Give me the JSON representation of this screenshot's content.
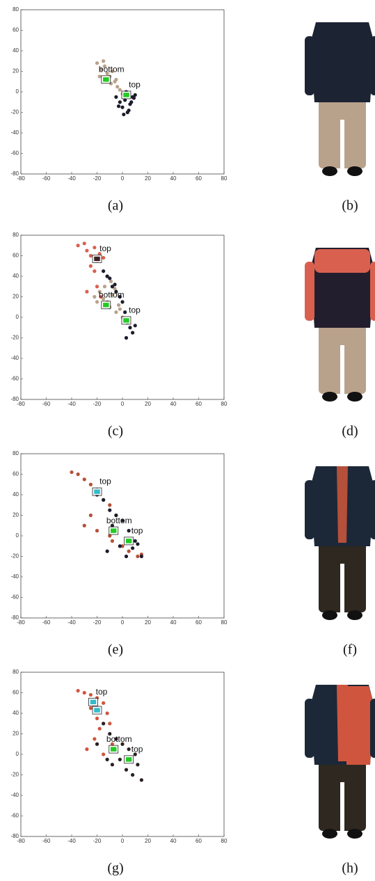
{
  "chart_data": [
    {
      "type": "scatter",
      "caption": "(a)",
      "xlim": [
        -80,
        80
      ],
      "ylim": [
        -80,
        80
      ],
      "xticks": [
        -80,
        -60,
        -40,
        -20,
        0,
        20,
        40,
        60,
        80
      ],
      "yticks": [
        -80,
        -60,
        -40,
        -20,
        0,
        20,
        40,
        60,
        80
      ],
      "series": [
        {
          "color": "#b9a28b",
          "x": [
            -20,
            -17,
            -14,
            -12,
            -10,
            -8,
            -6,
            -4,
            -18,
            -15,
            -9,
            -5,
            -2,
            0
          ],
          "y": [
            28,
            22,
            25,
            18,
            15,
            20,
            10,
            5,
            15,
            30,
            8,
            12,
            2,
            -2
          ]
        },
        {
          "color": "#1c1c2c",
          "x": [
            -5,
            -2,
            0,
            2,
            4,
            6,
            8,
            10,
            1,
            3,
            5,
            -3,
            7,
            9
          ],
          "y": [
            -5,
            -10,
            -15,
            -8,
            -20,
            -12,
            -5,
            -3,
            -22,
            0,
            -18,
            -14,
            -10,
            -6
          ]
        }
      ],
      "markers": [
        {
          "x": -13,
          "y": 12,
          "label": "bottom",
          "color": "#22cc22"
        },
        {
          "x": 3,
          "y": -3,
          "label": "top",
          "color": "#22cc22"
        }
      ]
    },
    {
      "type": "scatter",
      "caption": "(c)",
      "xlim": [
        -80,
        80
      ],
      "ylim": [
        -80,
        80
      ],
      "xticks": [
        -80,
        -60,
        -40,
        -20,
        0,
        20,
        40,
        60,
        80
      ],
      "yticks": [
        -80,
        -60,
        -40,
        -20,
        0,
        20,
        40,
        60,
        80
      ],
      "series": [
        {
          "color": "#d9604f",
          "x": [
            -35,
            -30,
            -28,
            -25,
            -22,
            -20,
            -18,
            -15,
            -25,
            -12,
            -28,
            -20,
            -17,
            -22
          ],
          "y": [
            70,
            72,
            65,
            60,
            68,
            55,
            62,
            58,
            50,
            40,
            25,
            30,
            20,
            45
          ]
        },
        {
          "color": "#b9a28b",
          "x": [
            -22,
            -18,
            -15,
            -12,
            -10,
            -8,
            -5,
            -3,
            -14,
            -6,
            0,
            -20,
            -9,
            -2
          ],
          "y": [
            20,
            25,
            18,
            15,
            10,
            22,
            5,
            12,
            30,
            28,
            0,
            15,
            35,
            8
          ]
        },
        {
          "color": "#1c1c2c",
          "x": [
            -15,
            -10,
            -8,
            -5,
            -2,
            0,
            2,
            4,
            6,
            8,
            10,
            -12,
            -6,
            3
          ],
          "y": [
            45,
            38,
            30,
            25,
            20,
            15,
            5,
            -5,
            -10,
            -15,
            -8,
            40,
            32,
            -20
          ]
        }
      ],
      "markers": [
        {
          "x": -20,
          "y": 57,
          "label": "top",
          "color": "#3a2020"
        },
        {
          "x": -13,
          "y": 12,
          "label": "bottom",
          "color": "#22cc22"
        },
        {
          "x": 3,
          "y": -3,
          "label": "top",
          "color": "#22cc22"
        }
      ]
    },
    {
      "type": "scatter",
      "caption": "(e)",
      "xlim": [
        -80,
        80
      ],
      "ylim": [
        -80,
        80
      ],
      "xticks": [
        -80,
        -60,
        -40,
        -20,
        0,
        20,
        40,
        60,
        80
      ],
      "yticks": [
        -80,
        -60,
        -40,
        -20,
        0,
        20,
        40,
        60,
        80
      ],
      "series": [
        {
          "color": "#b5503a",
          "x": [
            -40,
            -35,
            -30,
            -25,
            -20,
            -15,
            -10,
            -5,
            -30,
            -20,
            -10,
            0,
            5,
            12,
            15,
            -8,
            -25
          ],
          "y": [
            62,
            60,
            55,
            50,
            45,
            35,
            30,
            20,
            10,
            5,
            0,
            -10,
            -15,
            -20,
            -18,
            -5,
            20
          ]
        },
        {
          "color": "#1c1c2c",
          "x": [
            -20,
            -15,
            -10,
            -5,
            0,
            5,
            10,
            -12,
            -2,
            3,
            8,
            12,
            15,
            -8
          ],
          "y": [
            40,
            35,
            25,
            20,
            15,
            5,
            -5,
            -15,
            -10,
            -20,
            -12,
            -8,
            -20,
            10
          ]
        }
      ],
      "markers": [
        {
          "x": -20,
          "y": 43,
          "label": "top",
          "color": "#33bbcc"
        },
        {
          "x": -7,
          "y": 5,
          "label": "bottom",
          "color": "#22cc22"
        },
        {
          "x": 5,
          "y": -5,
          "label": "top",
          "color": "#22cc22"
        }
      ]
    },
    {
      "type": "scatter",
      "caption": "(g)",
      "xlim": [
        -80,
        80
      ],
      "ylim": [
        -80,
        80
      ],
      "xticks": [
        -80,
        -60,
        {
          "value": -40,
          "label": "-40"
        },
        -20,
        0,
        20,
        40,
        60,
        80
      ],
      "yticks": [
        -80,
        -60,
        -40,
        -20,
        0,
        20,
        40,
        60,
        80
      ],
      "series": [
        {
          "color": "#d0553f",
          "x": [
            -35,
            -30,
            -25,
            -20,
            -15,
            -12,
            -10,
            -18,
            -22,
            -28,
            -15,
            -8,
            -20,
            -25
          ],
          "y": [
            62,
            60,
            58,
            55,
            50,
            40,
            30,
            25,
            15,
            5,
            0,
            10,
            35,
            45
          ]
        },
        {
          "color": "#2a2020",
          "x": [
            -15,
            -10,
            -5,
            0,
            5,
            10,
            -8,
            -2,
            3,
            8,
            12,
            -12,
            15,
            -20
          ],
          "y": [
            30,
            20,
            15,
            10,
            5,
            0,
            -10,
            -5,
            -15,
            -20,
            -10,
            -5,
            -25,
            10
          ]
        }
      ],
      "markers": [
        {
          "x": -23,
          "y": 51,
          "label": "top",
          "color": "#33bbcc"
        },
        {
          "x": -20,
          "y": 43,
          "label": null,
          "color": "#33bbcc"
        },
        {
          "x": -7,
          "y": 5,
          "label": "bottom",
          "color": "#22cc22"
        },
        {
          "x": 5,
          "y": -5,
          "label": "top",
          "color": "#22cc22"
        }
      ]
    }
  ],
  "images": [
    {
      "caption": "(b)"
    },
    {
      "caption": "(d)"
    },
    {
      "caption": "(f)"
    },
    {
      "caption": "(h)"
    }
  ]
}
